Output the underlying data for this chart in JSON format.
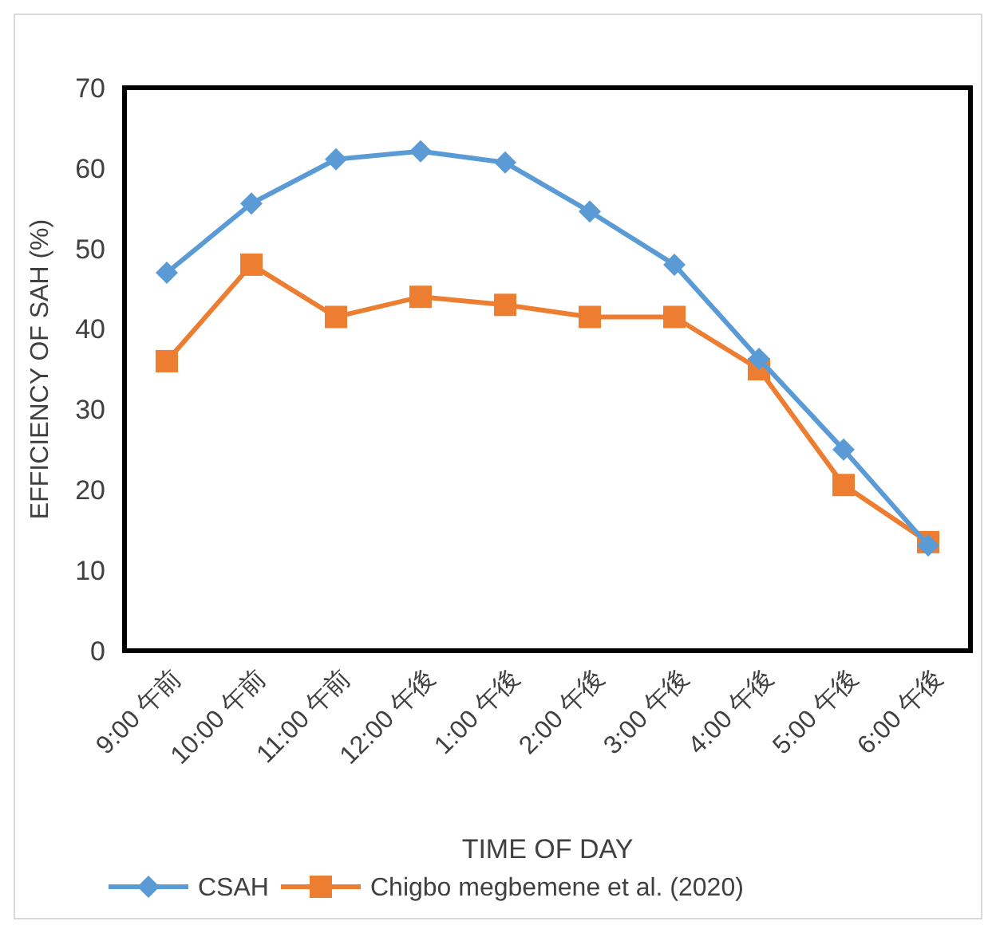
{
  "chart_data": {
    "type": "line",
    "xlabel": "TIME OF DAY",
    "ylabel": "EFFICIENCY OF SAH (%)",
    "categories": [
      "9:00 午前",
      "10:00 午前",
      "11:00 午前",
      "12:00 午後",
      "1:00 午後",
      "2:00 午後",
      "3:00 午後",
      "4:00 午後",
      "5:00 午後",
      "6:00 午後"
    ],
    "series": [
      {
        "name": "CSAH",
        "color": "#5b9bd5",
        "marker": "diamond",
        "values": [
          47,
          55.6,
          61.1,
          62.1,
          60.7,
          54.6,
          48,
          36.3,
          25,
          13.1
        ]
      },
      {
        "name": "Chigbo megbemene et al. (2020)",
        "color": "#ed7d31",
        "marker": "square",
        "values": [
          36,
          48,
          41.5,
          44,
          43,
          41.5,
          41.5,
          35,
          20.6,
          13.5
        ]
      }
    ],
    "ylim": [
      0,
      70
    ],
    "yticks": [
      0,
      10,
      20,
      30,
      40,
      50,
      60,
      70
    ],
    "grid": false,
    "legend": "bottom",
    "line_style": "solid"
  }
}
